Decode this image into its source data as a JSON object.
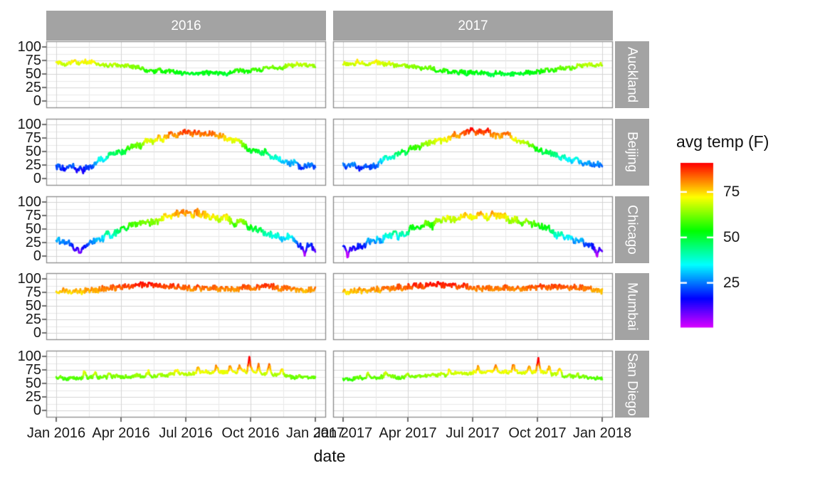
{
  "colors": {
    "background": "#ffffff",
    "strip_fill": "#a3a3a3",
    "strip_text": "#ffffff",
    "panel_border": "#8a8a8a",
    "grid_major": "#d4d4d4",
    "grid_minor": "#e9e9e9",
    "tick_mark": "#333333",
    "axis_text": "#1a1a1a"
  },
  "chart_data": {
    "type": "line",
    "title": "",
    "xlabel": "date",
    "ylabel": "",
    "ylim": [
      0,
      100
    ],
    "grid": "major+minor",
    "facet_cols": [
      "2016",
      "2017"
    ],
    "facet_rows": [
      "Auckland",
      "Beijing",
      "Chicago",
      "Mumbai",
      "San Diego"
    ],
    "y_ticks": [
      100,
      75,
      50,
      25,
      0
    ],
    "x_tick_labels": [
      [
        "Jan 2016",
        "Apr 2016",
        "Jul 2016",
        "Oct 2016",
        "Jan 2017"
      ],
      [
        "Jan 2017",
        "Apr 2017",
        "Jul 2017",
        "Oct 2017",
        "Jan 2018"
      ]
    ],
    "legend": {
      "title": "avg temp (F)",
      "position": "right",
      "ticks": [
        75,
        50,
        25
      ],
      "tick_labels": [
        "75",
        "50",
        "25"
      ],
      "domain": [
        1,
        91
      ],
      "hue_deg_range": [
        290,
        0
      ],
      "palette_stops_top_to_bottom": [
        "#ff0000",
        "#ffa500",
        "#d0ff00",
        "#48ff00",
        "#00ff40",
        "#00ffcc",
        "#00aaff",
        "#0066ff",
        "#2200ff",
        "#d400ff"
      ]
    },
    "series": [
      {
        "city": "Auckland",
        "year": "2016",
        "seed": 11,
        "monthly_anchor_F": [
          68,
          71,
          69,
          64,
          59,
          55,
          51,
          51,
          53,
          56,
          60,
          64,
          66
        ],
        "daily_noise": 3.5,
        "slow_noise": 3,
        "spikes": [
          [
            25,
            5
          ],
          [
            40,
            4
          ],
          [
            340,
            4
          ]
        ]
      },
      {
        "city": "Auckland",
        "year": "2017",
        "seed": 12,
        "monthly_anchor_F": [
          66,
          70,
          69,
          64,
          59,
          54,
          51,
          50,
          52,
          55,
          59,
          64,
          67
        ],
        "daily_noise": 3.5,
        "slow_noise": 3,
        "spikes": [
          [
            20,
            5
          ],
          [
            45,
            4
          ],
          [
            350,
            5
          ]
        ]
      },
      {
        "city": "Beijing",
        "year": "2016",
        "seed": 21,
        "monthly_anchor_F": [
          25,
          17,
          33,
          50,
          64,
          76,
          85,
          83,
          72,
          56,
          40,
          28,
          22
        ],
        "daily_noise": 5,
        "slow_noise": 5,
        "spikes": [
          [
            38,
            -8
          ]
        ]
      },
      {
        "city": "Beijing",
        "year": "2017",
        "seed": 22,
        "monthly_anchor_F": [
          22,
          20,
          34,
          51,
          65,
          77,
          86,
          84,
          73,
          57,
          41,
          29,
          23
        ],
        "daily_noise": 5,
        "slow_noise": 5,
        "spikes": []
      },
      {
        "city": "Chicago",
        "year": "2016",
        "seed": 31,
        "monthly_anchor_F": [
          26,
          16,
          34,
          46,
          57,
          70,
          78,
          77,
          68,
          56,
          42,
          28,
          12
        ],
        "daily_noise": 6,
        "slow_noise": 6,
        "spikes": [
          [
            35,
            -12
          ],
          [
            350,
            -14
          ]
        ]
      },
      {
        "city": "Chicago",
        "year": "2017",
        "seed": 32,
        "monthly_anchor_F": [
          16,
          24,
          33,
          46,
          58,
          70,
          77,
          76,
          67,
          55,
          41,
          28,
          14
        ],
        "daily_noise": 6,
        "slow_noise": 6,
        "spikes": [
          [
            6,
            -12
          ],
          [
            358,
            -14
          ]
        ]
      },
      {
        "city": "Mumbai",
        "year": "2016",
        "seed": 41,
        "monthly_anchor_F": [
          78,
          77,
          80,
          85,
          89,
          87,
          83,
          81,
          82,
          84,
          85,
          82,
          79
        ],
        "daily_noise": 5,
        "slow_noise": 2,
        "spikes": []
      },
      {
        "city": "Mumbai",
        "year": "2017",
        "seed": 42,
        "monthly_anchor_F": [
          77,
          78,
          81,
          86,
          89,
          88,
          83,
          82,
          82,
          84,
          85,
          83,
          78
        ],
        "daily_noise": 5,
        "slow_noise": 2,
        "spikes": []
      },
      {
        "city": "San Diego",
        "year": "2016",
        "seed": 51,
        "monthly_anchor_F": [
          59,
          60,
          61,
          62,
          64,
          66,
          69,
          71,
          72,
          71,
          66,
          62,
          60
        ],
        "daily_noise": 3,
        "slow_noise": 2,
        "spikes": [
          [
            40,
            14
          ],
          [
            55,
            12
          ],
          [
            75,
            10
          ],
          [
            130,
            8
          ],
          [
            170,
            8
          ],
          [
            200,
            9
          ],
          [
            225,
            10
          ],
          [
            245,
            12
          ],
          [
            258,
            14
          ],
          [
            272,
            26
          ],
          [
            285,
            14
          ],
          [
            300,
            18
          ],
          [
            318,
            10
          ]
        ]
      },
      {
        "city": "San Diego",
        "year": "2017",
        "seed": 52,
        "monthly_anchor_F": [
          58,
          60,
          61,
          62,
          64,
          67,
          70,
          72,
          72,
          70,
          66,
          62,
          59
        ],
        "daily_noise": 3,
        "slow_noise": 2,
        "spikes": [
          [
            35,
            10
          ],
          [
            60,
            12
          ],
          [
            90,
            8
          ],
          [
            150,
            8
          ],
          [
            190,
            10
          ],
          [
            215,
            12
          ],
          [
            240,
            14
          ],
          [
            262,
            12
          ],
          [
            275,
            24
          ],
          [
            290,
            16
          ],
          [
            305,
            12
          ],
          [
            330,
            8
          ]
        ]
      }
    ]
  }
}
